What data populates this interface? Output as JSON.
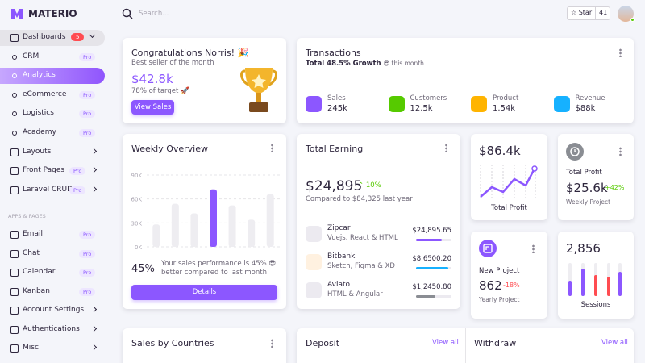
{
  "brand": "MATERIO",
  "search_placeholder": "Search...",
  "github": {
    "label": "Star",
    "count": "41"
  },
  "sidebar": {
    "items": [
      {
        "label": "Dashboards",
        "badge": "5"
      },
      {
        "label": "CRM",
        "badge": "Pro"
      },
      {
        "label": "Analytics"
      },
      {
        "label": "eCommerce",
        "badge": "Pro"
      },
      {
        "label": "Logistics",
        "badge": "Pro"
      },
      {
        "label": "Academy",
        "badge": "Pro"
      },
      {
        "label": "Layouts"
      },
      {
        "label": "Front Pages",
        "badge": "Pro"
      },
      {
        "label": "Laravel CRUD",
        "badge": "Pro"
      }
    ],
    "section": "APPS & PAGES",
    "apps": [
      {
        "label": "Email",
        "badge": "Pro"
      },
      {
        "label": "Chat",
        "badge": "Pro"
      },
      {
        "label": "Calendar",
        "badge": "Pro"
      },
      {
        "label": "Kanban",
        "badge": "Pro"
      },
      {
        "label": "Account Settings"
      },
      {
        "label": "Authentications"
      },
      {
        "label": "Misc"
      }
    ]
  },
  "congrats": {
    "title": "Congratulations Norris! 🎉",
    "subtitle": "Best seller of the month",
    "amount": "$42.8k",
    "target": "78% of target 🚀",
    "button": "View Sales"
  },
  "transactions": {
    "title": "Transactions",
    "growth": "Total 48.5% Growth",
    "growth_suffix": "😎 this month",
    "stats": [
      {
        "label": "Sales",
        "value": "245k"
      },
      {
        "label": "Customers",
        "value": "12.5k"
      },
      {
        "label": "Product",
        "value": "1.54k"
      },
      {
        "label": "Revenue",
        "value": "$88k"
      }
    ]
  },
  "weekly_overview": {
    "title": "Weekly Overview",
    "ylim": [
      0,
      90
    ],
    "yticks": [
      {
        "value": 90,
        "label": "90K"
      },
      {
        "value": 60,
        "label": "60K"
      },
      {
        "value": 30,
        "label": "30K"
      },
      {
        "value": 0,
        "label": "0K"
      }
    ],
    "values": [
      28,
      54,
      42,
      72,
      52,
      34,
      66
    ],
    "color": "#eeedf1",
    "highlight_color": "#8c57ff",
    "highlight_index": 3,
    "grid": true,
    "percent": "45%",
    "text": "Your sales performance is 45% 😎 better compared to last month",
    "button": "Details"
  },
  "total_earning": {
    "title": "Total Earning",
    "amount": "$24,895",
    "change": "10%",
    "compare": "Compared to $84,325 last year",
    "items": [
      {
        "name": "Zipcar",
        "detail": "Vuejs, React & HTML",
        "amount": "$24,895.65"
      },
      {
        "name": "Bitbank",
        "detail": "Sketch, Figma & XD",
        "amount": "$8,6500.20"
      },
      {
        "name": "Aviato",
        "detail": "HTML & Angular",
        "amount": "$1,2450.80"
      }
    ]
  },
  "profit_chart": {
    "amount": "$86.4k",
    "label": "Total Profit"
  },
  "total_profit": {
    "title": "Total Profit",
    "amount": "$25.6k",
    "change": "+42%",
    "subtitle": "Weekly Project"
  },
  "new_project": {
    "title": "New Project",
    "amount": "862",
    "change": "-18%",
    "subtitle": "Yearly Project"
  },
  "sessions": {
    "amount": "2,856",
    "label": "Sessions"
  },
  "sales_by_countries": {
    "title": "Sales by Countries"
  },
  "deposit": {
    "title": "Deposit",
    "link": "View all"
  },
  "withdraw": {
    "title": "Withdraw",
    "link": "View all"
  }
}
